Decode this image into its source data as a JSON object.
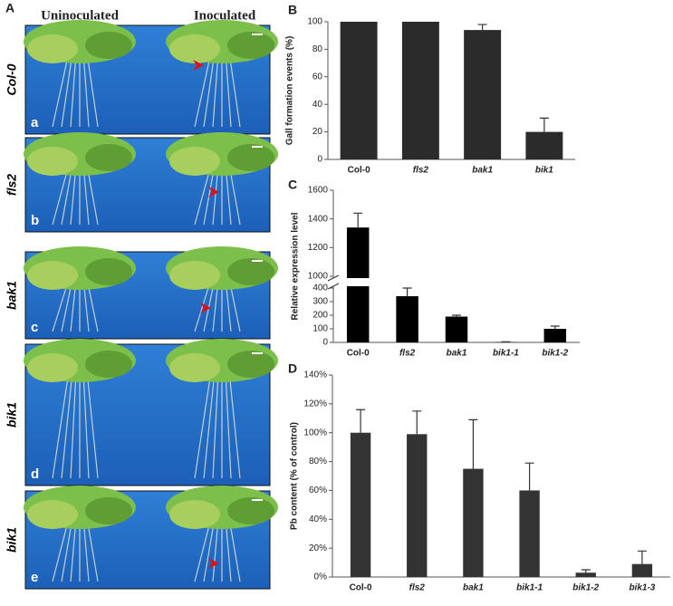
{
  "panel_a": {
    "label": "A",
    "columns": [
      "Uninoculated",
      "Inoculated"
    ],
    "rows": [
      {
        "genotype": "Col-0",
        "letter": "a"
      },
      {
        "genotype": "fls2",
        "letter": "b"
      },
      {
        "genotype": "bak1",
        "letter": "c"
      },
      {
        "genotype": "bik1",
        "letter": "d"
      },
      {
        "genotype": "bik1",
        "letter": "e"
      }
    ]
  },
  "chart_data": [
    {
      "panel": "B",
      "type": "bar",
      "ylabel": "Gall formation events (%)",
      "categories": [
        "Col-0",
        "fls2",
        "bak1",
        "bik1"
      ],
      "values": [
        100,
        100,
        94,
        20
      ],
      "errors": [
        0,
        0,
        4,
        10
      ],
      "color": "#2b2b2b",
      "ylim": [
        0,
        100
      ],
      "yticks": [
        0,
        20,
        40,
        60,
        80,
        100
      ]
    },
    {
      "panel": "C",
      "type": "bar",
      "ylabel": "Relative expression level",
      "categories": [
        "Col-0",
        "fls2",
        "bak1",
        "bik1-1",
        "bik1-2"
      ],
      "values": [
        1340,
        340,
        190,
        2,
        100
      ],
      "errors": [
        100,
        60,
        10,
        2,
        20
      ],
      "color": "#000000",
      "ylim": [
        0,
        1600
      ],
      "axis_break": [
        400,
        1000
      ],
      "yticks": [
        0,
        100,
        200,
        300,
        400,
        1000,
        1200,
        1400,
        1600
      ]
    },
    {
      "panel": "D",
      "type": "bar",
      "ylabel": "Pb content  (% of control)",
      "categories": [
        "Col-0",
        "fls2",
        "bak1",
        "bik1-1",
        "bik1-2",
        "bik1-3"
      ],
      "values": [
        100,
        99,
        75,
        60,
        3,
        9
      ],
      "errors": [
        16,
        16,
        34,
        19,
        2,
        9
      ],
      "color": "#333333",
      "ylim": [
        0,
        140
      ],
      "yticks": [
        {
          "value": 0,
          "label": "0%"
        },
        {
          "value": 20,
          "label": "20%"
        },
        {
          "value": 40,
          "label": "40%"
        },
        {
          "value": 60,
          "label": "60%"
        },
        {
          "value": 80,
          "label": "80%"
        },
        {
          "value": 100,
          "label": "100%"
        },
        {
          "value": 120,
          "label": "120%"
        },
        {
          "value": 140,
          "label": "140%"
        }
      ]
    }
  ]
}
